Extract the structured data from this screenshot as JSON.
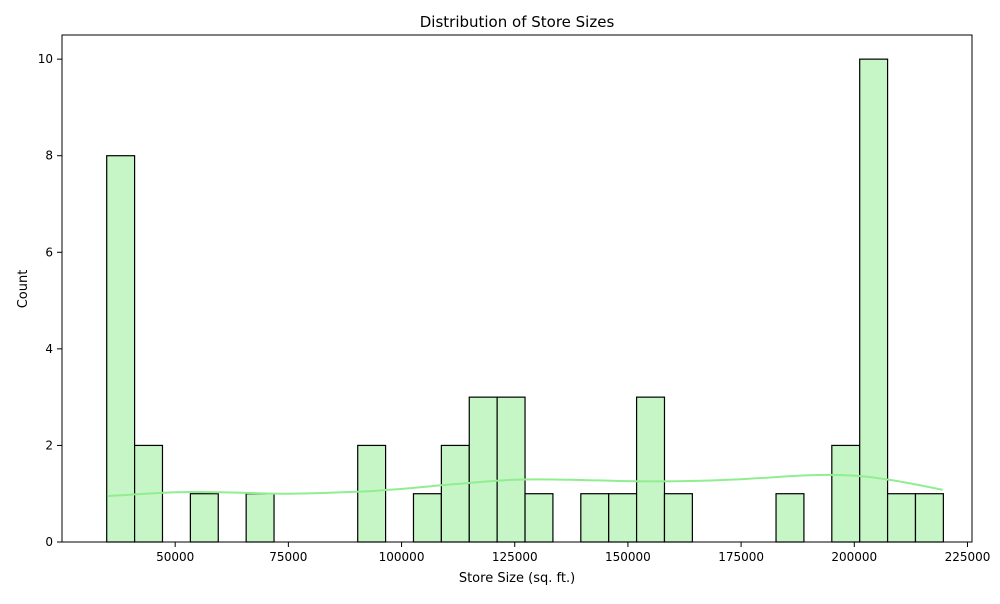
{
  "chart_data": {
    "type": "bar",
    "title": "Distribution of Store Sizes",
    "xlabel": "Store Size (sq. ft.)",
    "ylabel": "Count",
    "xlim": [
      25000,
      226000
    ],
    "ylim": [
      0,
      10.5
    ],
    "xticks": [
      50000,
      75000,
      100000,
      125000,
      150000,
      175000,
      200000,
      225000
    ],
    "yticks": [
      0,
      2,
      4,
      6,
      8,
      10
    ],
    "bin_start": 34875,
    "bin_width": 6160,
    "bins": [
      {
        "x0": 34875,
        "x1": 41035,
        "count": 8
      },
      {
        "x0": 41035,
        "x1": 47195,
        "count": 2
      },
      {
        "x0": 47195,
        "x1": 53355,
        "count": 0
      },
      {
        "x0": 53355,
        "x1": 59515,
        "count": 1
      },
      {
        "x0": 59515,
        "x1": 65675,
        "count": 0
      },
      {
        "x0": 65675,
        "x1": 71835,
        "count": 1
      },
      {
        "x0": 71835,
        "x1": 77995,
        "count": 0
      },
      {
        "x0": 77995,
        "x1": 84155,
        "count": 0
      },
      {
        "x0": 84155,
        "x1": 90315,
        "count": 0
      },
      {
        "x0": 90315,
        "x1": 96475,
        "count": 2
      },
      {
        "x0": 96475,
        "x1": 102635,
        "count": 0
      },
      {
        "x0": 102635,
        "x1": 108795,
        "count": 1
      },
      {
        "x0": 108795,
        "x1": 114955,
        "count": 2
      },
      {
        "x0": 114955,
        "x1": 121115,
        "count": 3
      },
      {
        "x0": 121115,
        "x1": 127275,
        "count": 3
      },
      {
        "x0": 127275,
        "x1": 133435,
        "count": 1
      },
      {
        "x0": 133435,
        "x1": 139595,
        "count": 0
      },
      {
        "x0": 139595,
        "x1": 145755,
        "count": 1
      },
      {
        "x0": 145755,
        "x1": 151915,
        "count": 1
      },
      {
        "x0": 151915,
        "x1": 158075,
        "count": 3
      },
      {
        "x0": 158075,
        "x1": 164235,
        "count": 1
      },
      {
        "x0": 164235,
        "x1": 170395,
        "count": 0
      },
      {
        "x0": 170395,
        "x1": 176555,
        "count": 0
      },
      {
        "x0": 176555,
        "x1": 182715,
        "count": 0
      },
      {
        "x0": 182715,
        "x1": 188875,
        "count": 1
      },
      {
        "x0": 188875,
        "x1": 195035,
        "count": 0
      },
      {
        "x0": 195035,
        "x1": 201195,
        "count": 2
      },
      {
        "x0": 201195,
        "x1": 207355,
        "count": 10
      },
      {
        "x0": 207355,
        "x1": 213515,
        "count": 1
      },
      {
        "x0": 213515,
        "x1": 219675,
        "count": 1
      }
    ],
    "kde": {
      "x": [
        35000,
        50000,
        60000,
        75000,
        90000,
        100000,
        112000,
        125000,
        137000,
        150000,
        162000,
        175000,
        187000,
        195000,
        203000,
        212000,
        219500
      ],
      "y": [
        0.95,
        1.03,
        1.03,
        1.0,
        1.04,
        1.1,
        1.2,
        1.29,
        1.29,
        1.26,
        1.26,
        1.3,
        1.37,
        1.39,
        1.35,
        1.22,
        1.08
      ]
    },
    "colors": {
      "bar_fill": "#c6f5c6",
      "bar_edge": "#000000",
      "kde_line": "#90ee90"
    },
    "grid": false
  }
}
